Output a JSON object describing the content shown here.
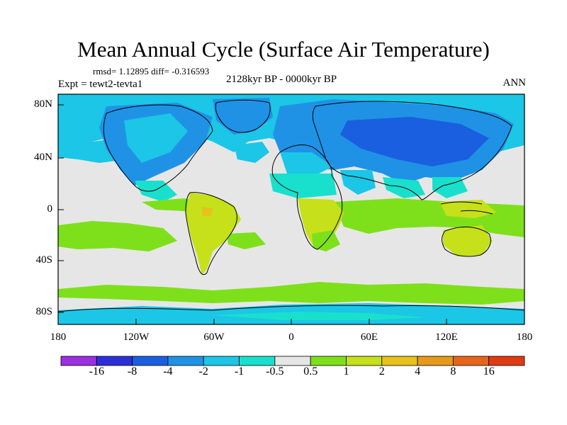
{
  "figure": {
    "title": "Mean Annual Cycle (Surface Air Temperature)",
    "stats": "rmsd= 1.12895 diff= -0.316593",
    "experiment": "Expt = tewt2-tevta1",
    "period": "2128kyr BP - 0000kyr BP",
    "season": "ANN"
  },
  "map": {
    "lat_labels": [
      "80N",
      "40N",
      "0",
      "40S",
      "80S"
    ],
    "lon_labels": [
      "180",
      "120W",
      "60W",
      "0",
      "60E",
      "120E",
      "180"
    ],
    "ocean_color": "#e6e6e6",
    "coast_color": "#000000"
  },
  "colorbar": {
    "colors": [
      "#9a30e0",
      "#2c2fd8",
      "#1a5fe0",
      "#1f92e6",
      "#1cc6e6",
      "#19e0cc",
      "#e6e6e6",
      "#7ee01a",
      "#c6e01a",
      "#e6c21a",
      "#e69a1a",
      "#e6651a",
      "#e03a12"
    ],
    "labels": [
      "-16",
      "-8",
      "-4",
      "-2",
      "-1",
      "-0.5",
      "0.5",
      "1",
      "2",
      "4",
      "8",
      "16"
    ]
  }
}
